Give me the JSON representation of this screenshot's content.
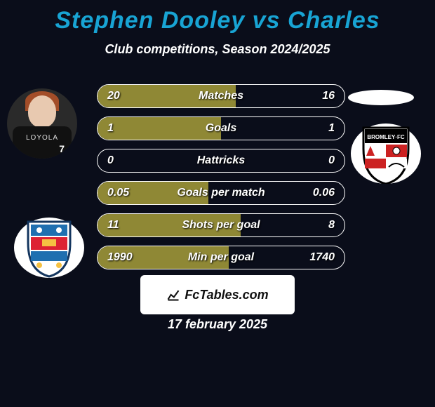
{
  "title": "Stephen Dooley vs Charles",
  "subtitle": "Club competitions, Season 2024/2025",
  "title_color": "#18a4d4",
  "bg_color": "#0a0d1a",
  "bar_fill_color": "#8f8835",
  "avatar": {
    "jersey_number": "7",
    "jersey_text": "LOYOLA"
  },
  "bars": [
    {
      "label": "Matches",
      "left": "20",
      "right": "16",
      "fill_pct": 56
    },
    {
      "label": "Goals",
      "left": "1",
      "right": "1",
      "fill_pct": 50
    },
    {
      "label": "Hattricks",
      "left": "0",
      "right": "0",
      "fill_pct": 0
    },
    {
      "label": "Goals per match",
      "left": "0.05",
      "right": "0.06",
      "fill_pct": 45
    },
    {
      "label": "Shots per goal",
      "left": "11",
      "right": "8",
      "fill_pct": 58
    },
    {
      "label": "Min per goal",
      "left": "1990",
      "right": "1740",
      "fill_pct": 53
    }
  ],
  "footer_brand": "FcTables.com",
  "date": "17 february 2025"
}
